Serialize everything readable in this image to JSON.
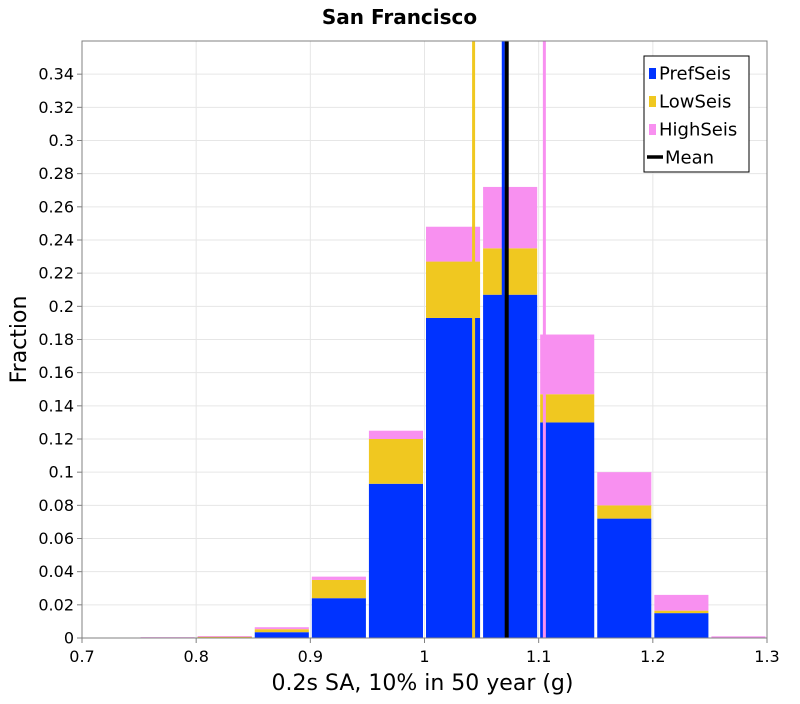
{
  "chart_data": {
    "type": "bar",
    "title": "San Francisco",
    "xlabel": "0.2s SA, 10% in 50 year (g)",
    "ylabel": "Fraction",
    "xlim": [
      0.7,
      1.3
    ],
    "ylim": [
      0,
      0.36
    ],
    "x_ticks": [
      "0.7",
      "0.8",
      "0.9",
      "1",
      "1.1",
      "1.2",
      "1.3"
    ],
    "y_ticks": [
      "0",
      "0.02",
      "0.04",
      "0.06",
      "0.08",
      "0.1",
      "0.12",
      "0.14",
      "0.16",
      "0.18",
      "0.2",
      "0.22",
      "0.24",
      "0.26",
      "0.28",
      "0.3",
      "0.32",
      "0.34"
    ],
    "stacked": true,
    "bin_width": 0.05,
    "bin_centers": [
      0.725,
      0.775,
      0.825,
      0.875,
      0.925,
      0.975,
      1.025,
      1.075,
      1.125,
      1.175,
      1.225,
      1.275
    ],
    "series": [
      {
        "name": "PrefSeis",
        "color": "#0033ff",
        "values": [
          0.0,
          0.0,
          0.0005,
          0.0035,
          0.024,
          0.093,
          0.193,
          0.207,
          0.13,
          0.072,
          0.015,
          0.0
        ]
      },
      {
        "name": "LowSeis",
        "color": "#f0c820",
        "values": [
          0.0,
          0.0,
          0.0003,
          0.0018,
          0.011,
          0.027,
          0.034,
          0.028,
          0.017,
          0.008,
          0.0015,
          0.0
        ]
      },
      {
        "name": "HighSeis",
        "color": "#f890f0",
        "values": [
          0.0,
          0.0005,
          0.0004,
          0.0012,
          0.002,
          0.005,
          0.021,
          0.037,
          0.036,
          0.02,
          0.0095,
          0.001
        ]
      }
    ],
    "vertical_lines": [
      {
        "name": "LowSeis",
        "x": 1.043,
        "color": "#f0c820"
      },
      {
        "name": "PrefSeis",
        "x": 1.069,
        "color": "#0033ff"
      },
      {
        "name": "HighSeis",
        "x": 1.105,
        "color": "#f890f0"
      },
      {
        "name": "Mean",
        "x": 1.072,
        "color": "#000000"
      }
    ],
    "legend": {
      "placement": "top-right",
      "entries": [
        {
          "label": "PrefSeis",
          "color": "#0033ff",
          "marker": "square"
        },
        {
          "label": "LowSeis",
          "color": "#f0c820",
          "marker": "square"
        },
        {
          "label": "HighSeis",
          "color": "#f890f0",
          "marker": "square"
        },
        {
          "label": "Mean",
          "color": "#000000",
          "marker": "line"
        }
      ]
    },
    "grid": true,
    "grid_color": "#e6e6e6"
  }
}
